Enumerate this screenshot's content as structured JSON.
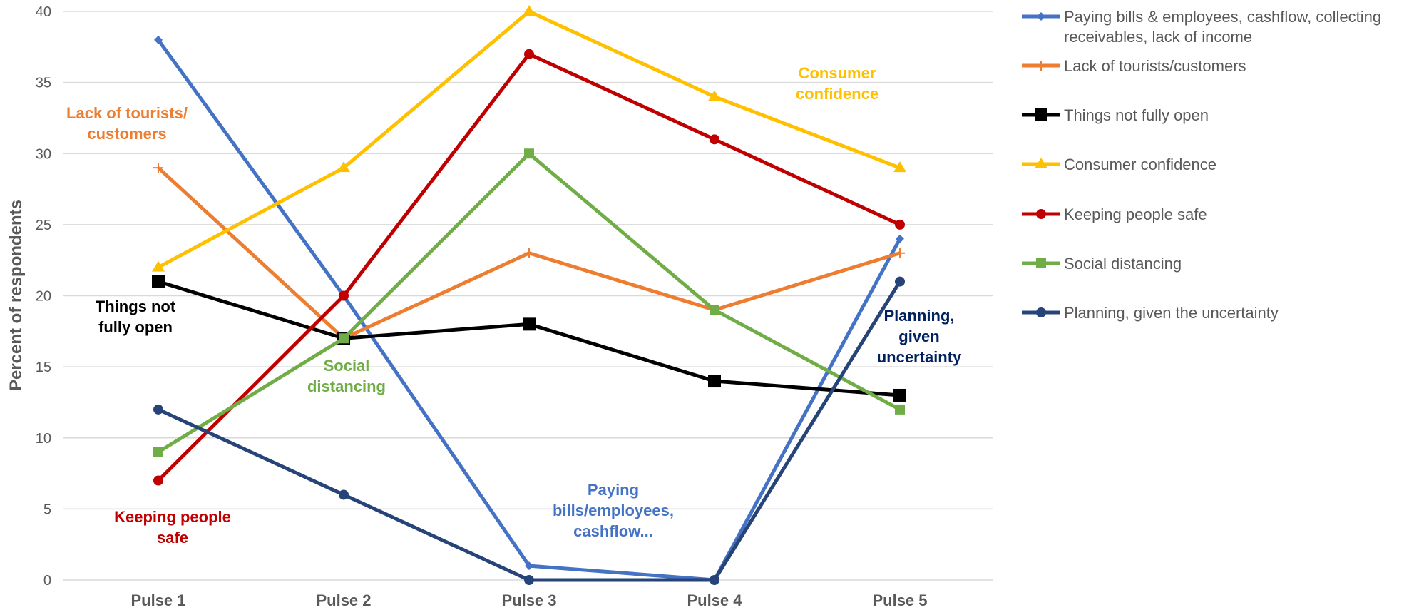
{
  "chart_data": {
    "type": "line",
    "ylabel": "Percent of respondents",
    "xlabel": "",
    "ylim": [
      0,
      40
    ],
    "yticks": [
      0,
      5,
      10,
      15,
      20,
      25,
      30,
      35,
      40
    ],
    "grid": true,
    "legend_position": "right",
    "categories": [
      "Pulse 1",
      "Pulse 2",
      "Pulse 3",
      "Pulse 4",
      "Pulse 5"
    ],
    "series": [
      {
        "name": "Paying bills & employees, cashflow, collecting receivables, lack of income",
        "name_lines": [
          "Paying bills & employees, cashflow, collecting",
          "receivables, lack of income"
        ],
        "color": "#4472C4",
        "marker": "diamond",
        "values": [
          38,
          20,
          1,
          0,
          24
        ]
      },
      {
        "name": "Lack of tourists/customers",
        "color": "#ED7D31",
        "marker": "plus",
        "values": [
          29,
          17,
          23,
          19,
          23
        ]
      },
      {
        "name": "Things not fully open",
        "color": "#000000",
        "marker": "square",
        "values": [
          21,
          17,
          18,
          14,
          13
        ]
      },
      {
        "name": "Consumer confidence",
        "color": "#FFC000",
        "marker": "triangle",
        "values": [
          22,
          29,
          40,
          34,
          29
        ]
      },
      {
        "name": "Keeping people safe",
        "color": "#C00000",
        "marker": "circle",
        "values": [
          7,
          20,
          37,
          31,
          25
        ]
      },
      {
        "name": "Social distancing",
        "color": "#70AD47",
        "marker": "square",
        "values": [
          9,
          17,
          30,
          19,
          12
        ]
      },
      {
        "name": "Planning, given the uncertainty",
        "color": "#264478",
        "marker": "circle",
        "values": [
          12,
          6,
          0,
          0,
          21
        ]
      }
    ],
    "annotations": [
      {
        "lines": [
          "Lack of tourists/",
          "customers"
        ],
        "color": "#ED7D31"
      },
      {
        "lines": [
          "Things not",
          "fully open"
        ],
        "color": "#000000"
      },
      {
        "lines": [
          "Keeping people",
          "safe"
        ],
        "color": "#C00000"
      },
      {
        "lines": [
          "Social",
          "distancing"
        ],
        "color": "#70AD47"
      },
      {
        "lines": [
          "Consumer",
          "confidence"
        ],
        "color": "#FFC000"
      },
      {
        "lines": [
          "Paying",
          "bills/employees,",
          "cashflow..."
        ],
        "color": "#4472C4"
      },
      {
        "lines": [
          "Planning,",
          "given",
          "uncertainty"
        ],
        "color": "#002060"
      }
    ]
  }
}
